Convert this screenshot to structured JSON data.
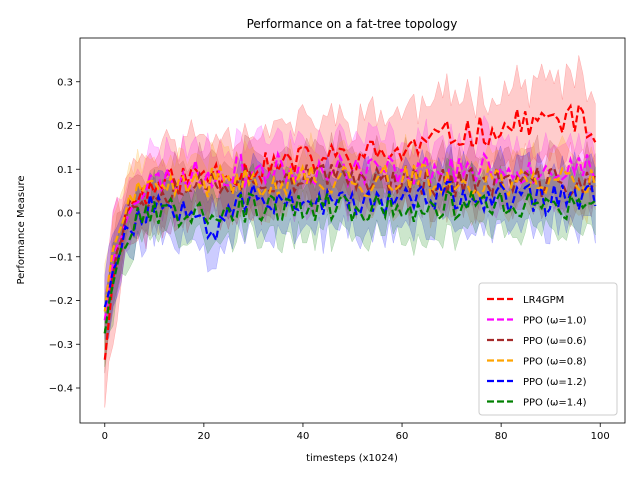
{
  "chart_data": {
    "type": "line",
    "title": "Performance on a fat-tree topology",
    "xlabel": "timesteps (x1024)",
    "ylabel": "Performance Measure",
    "xlim": [
      -5,
      105
    ],
    "ylim": [
      -0.48,
      0.4
    ],
    "xticks": [
      0,
      20,
      40,
      60,
      80,
      100
    ],
    "yticks": [
      -0.4,
      -0.3,
      -0.2,
      -0.1,
      0.0,
      0.1,
      0.2,
      0.3
    ],
    "ytick_labels": [
      "−0.4",
      "−0.3",
      "−0.2",
      "−0.1",
      "0.0",
      "0.1",
      "0.2",
      "0.3"
    ],
    "grid": false,
    "legend_position": "lower-right",
    "line_style": "dashed",
    "shaded_band": "mean ± std",
    "series": [
      {
        "name": "LR4GPM",
        "color": "#ff0000",
        "key_points": [
          [
            0,
            -0.33
          ],
          [
            2,
            -0.12
          ],
          [
            5,
            0.02
          ],
          [
            10,
            0.06
          ],
          [
            20,
            0.09
          ],
          [
            30,
            0.1
          ],
          [
            40,
            0.12
          ],
          [
            50,
            0.13
          ],
          [
            60,
            0.14
          ],
          [
            65,
            0.16
          ],
          [
            70,
            0.18
          ],
          [
            80,
            0.19
          ],
          [
            85,
            0.21
          ],
          [
            90,
            0.21
          ],
          [
            95,
            0.22
          ],
          [
            99,
            0.17
          ]
        ],
        "band": 0.09,
        "seed": 11
      },
      {
        "name": "PPO (ω=1.0)",
        "color": "#ff00ff",
        "key_points": [
          [
            0,
            -0.24
          ],
          [
            2,
            -0.09
          ],
          [
            5,
            0.03
          ],
          [
            10,
            0.07
          ],
          [
            20,
            0.09
          ],
          [
            30,
            0.1
          ],
          [
            40,
            0.1
          ],
          [
            50,
            0.1
          ],
          [
            60,
            0.1
          ],
          [
            70,
            0.1
          ],
          [
            80,
            0.1
          ],
          [
            90,
            0.1
          ],
          [
            99,
            0.1
          ]
        ],
        "band": 0.07,
        "seed": 23
      },
      {
        "name": "PPO (ω=0.6)",
        "color": "#a52a2a",
        "key_points": [
          [
            0,
            -0.27
          ],
          [
            2,
            -0.1
          ],
          [
            5,
            0.01
          ],
          [
            10,
            0.05
          ],
          [
            20,
            0.07
          ],
          [
            30,
            0.08
          ],
          [
            40,
            0.08
          ],
          [
            50,
            0.08
          ],
          [
            60,
            0.08
          ],
          [
            70,
            0.07
          ],
          [
            80,
            0.07
          ],
          [
            90,
            0.07
          ],
          [
            99,
            0.07
          ]
        ],
        "band": 0.06,
        "seed": 37
      },
      {
        "name": "PPO (ω=0.8)",
        "color": "#ffa500",
        "key_points": [
          [
            0,
            -0.22
          ],
          [
            2,
            -0.06
          ],
          [
            5,
            0.03
          ],
          [
            10,
            0.05
          ],
          [
            20,
            0.07
          ],
          [
            30,
            0.07
          ],
          [
            40,
            0.08
          ],
          [
            50,
            0.07
          ],
          [
            60,
            0.08
          ],
          [
            70,
            0.07
          ],
          [
            80,
            0.07
          ],
          [
            90,
            0.08
          ],
          [
            99,
            0.07
          ]
        ],
        "band": 0.06,
        "seed": 41
      },
      {
        "name": "PPO (ω=1.2)",
        "color": "#0000ff",
        "key_points": [
          [
            0,
            -0.21
          ],
          [
            2,
            -0.12
          ],
          [
            5,
            -0.03
          ],
          [
            10,
            0.02
          ],
          [
            20,
            0.02
          ],
          [
            21,
            -0.06
          ],
          [
            25,
            0.02
          ],
          [
            30,
            0.03
          ],
          [
            40,
            0.03
          ],
          [
            50,
            0.02
          ],
          [
            60,
            0.03
          ],
          [
            70,
            0.04
          ],
          [
            80,
            0.03
          ],
          [
            90,
            0.03
          ],
          [
            99,
            0.04
          ]
        ],
        "band": 0.07,
        "seed": 53
      },
      {
        "name": "PPO (ω=1.4)",
        "color": "#008000",
        "key_points": [
          [
            0,
            -0.27
          ],
          [
            2,
            -0.13
          ],
          [
            5,
            -0.03
          ],
          [
            10,
            0.0
          ],
          [
            20,
            0.01
          ],
          [
            30,
            0.01
          ],
          [
            40,
            0.01
          ],
          [
            50,
            0.01
          ],
          [
            60,
            0.01
          ],
          [
            70,
            0.02
          ],
          [
            80,
            0.02
          ],
          [
            90,
            0.01
          ],
          [
            99,
            0.01
          ]
        ],
        "band": 0.06,
        "seed": 67
      }
    ]
  }
}
